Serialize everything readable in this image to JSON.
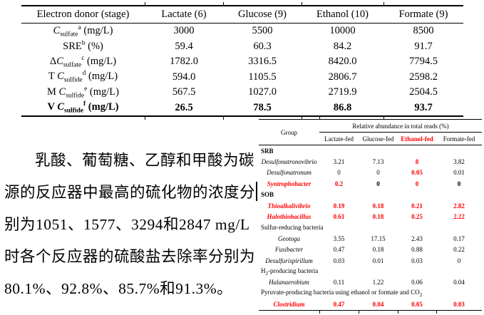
{
  "colors": {
    "accent_red": "#FF0000",
    "text": "#000000",
    "background": "#FFFFFF"
  },
  "top_table": {
    "columns": [
      "Electron donor (stage)",
      "Lactate (6)",
      "Glucose (9)",
      "Ethanol (10)",
      "Formate (9)"
    ],
    "rows": [
      {
        "label": [
          {
            "t": "C",
            "i": true
          },
          {
            "t": "sulfate",
            "sub": true
          },
          {
            "t": "a",
            "sup": true
          },
          {
            "t": " (mg/L)"
          }
        ],
        "values": [
          "3000",
          "5500",
          "10000",
          "8500"
        ],
        "bold": false
      },
      {
        "label": [
          {
            "t": "SRE"
          },
          {
            "t": "b",
            "sup": true
          },
          {
            "t": " (%)"
          }
        ],
        "values": [
          "59.4",
          "60.3",
          "84.2",
          "91.7"
        ],
        "bold": false
      },
      {
        "label": [
          {
            "t": "Δ"
          },
          {
            "t": "C",
            "i": true
          },
          {
            "t": "sulfate",
            "sub": true
          },
          {
            "t": "c",
            "sup": true
          },
          {
            "t": " (mg/L)"
          }
        ],
        "values": [
          "1782.0",
          "3316.5",
          "8420.0",
          "7794.5"
        ],
        "bold": false
      },
      {
        "label": [
          {
            "t": "T "
          },
          {
            "t": "C",
            "i": true
          },
          {
            "t": "sulfide",
            "sub": true
          },
          {
            "t": "d",
            "sup": true
          },
          {
            "t": " (mg/L)"
          }
        ],
        "values": [
          "594.0",
          "1105.5",
          "2806.7",
          "2598.2"
        ],
        "bold": false
      },
      {
        "label": [
          {
            "t": "M "
          },
          {
            "t": "C",
            "i": true
          },
          {
            "t": "sulfide",
            "sub": true
          },
          {
            "t": "e",
            "sup": true
          },
          {
            "t": " (mg/L)"
          }
        ],
        "values": [
          "567.5",
          "1027.0",
          "2719.9",
          "2504.5"
        ],
        "bold": false
      },
      {
        "label": [
          {
            "t": "V "
          },
          {
            "t": "C",
            "i": true
          },
          {
            "t": "sulfide",
            "sub": true
          },
          {
            "t": "f",
            "sup": true
          },
          {
            "t": " (mg/L)"
          }
        ],
        "values": [
          "26.5",
          "78.5",
          "86.8",
          "93.7"
        ],
        "bold": true
      }
    ]
  },
  "paragraph": {
    "lines": [
      "乳酸、葡萄糖、乙醇和甲酸为碳",
      "源的反应器中最高的硫化物的浓度分",
      "别为1051、1577、3294和2847 mg/L",
      "时各个反应器的硫酸盐去除率分别为",
      "80.1%、92.8%、85.7%和91.3%。"
    ],
    "cursor_after_line_index": 1
  },
  "right_table": {
    "group_header": "Group",
    "span_header": "Relative abundance in total reads (%)",
    "columns": [
      {
        "label": "Lactate-fed",
        "red": false
      },
      {
        "label": "Glucose-fed",
        "red": false
      },
      {
        "label": "Ethanol-fed",
        "red": true
      },
      {
        "label": "Formate-fed",
        "red": false
      }
    ],
    "rows": [
      {
        "type": "group",
        "bold": true,
        "red": false,
        "label": [
          {
            "t": "SRB"
          }
        ]
      },
      {
        "type": "genus",
        "red": false,
        "label": [
          {
            "t": "Desulfonatronovibrio"
          }
        ],
        "values": [
          {
            "t": "3.21"
          },
          {
            "t": "7.13"
          },
          {
            "t": "8",
            "red": true,
            "bold": true
          },
          {
            "t": "3.82"
          }
        ]
      },
      {
        "type": "genus",
        "red": false,
        "label": [
          {
            "t": "Desulfonatronum"
          }
        ],
        "values": [
          {
            "t": "0"
          },
          {
            "t": "0"
          },
          {
            "t": "0.05",
            "red": true,
            "bold": true
          },
          {
            "t": "0.01"
          }
        ]
      },
      {
        "type": "genus",
        "red": true,
        "label": [
          {
            "t": "Syntrophobacter"
          }
        ],
        "values": [
          {
            "t": "0.2",
            "red": true,
            "bold": true
          },
          {
            "t": "0",
            "bold": true
          },
          {
            "t": "0",
            "red": true,
            "bold": true
          },
          {
            "t": "0",
            "bold": true
          }
        ]
      },
      {
        "type": "group",
        "bold": true,
        "red": false,
        "label": [
          {
            "t": "SOB"
          }
        ]
      },
      {
        "type": "genus",
        "red": true,
        "label": [
          {
            "t": "Thioalkalivibrio"
          }
        ],
        "values": [
          {
            "t": "0.19",
            "red": true,
            "bold": true
          },
          {
            "t": "0.18",
            "red": true,
            "bold": true
          },
          {
            "t": "0.21",
            "red": true,
            "bold": true
          },
          {
            "t": "2.82",
            "red": true,
            "bold": true
          }
        ]
      },
      {
        "type": "genus",
        "red": true,
        "label": [
          {
            "t": "Halothiobacillus"
          }
        ],
        "values": [
          {
            "t": "0.61",
            "red": true,
            "bold": true
          },
          {
            "t": "0.18",
            "red": true,
            "bold": true
          },
          {
            "t": "0.25",
            "red": true,
            "bold": true
          },
          {
            "t": "2.22",
            "red": true,
            "bold": true
          }
        ]
      },
      {
        "type": "group",
        "bold": false,
        "red": false,
        "label": [
          {
            "t": "Sulfur-reducing bacteria"
          }
        ]
      },
      {
        "type": "genus",
        "red": false,
        "label": [
          {
            "t": "Geotoga"
          }
        ],
        "values": [
          {
            "t": "3.55"
          },
          {
            "t": "17.15"
          },
          {
            "t": "2.43"
          },
          {
            "t": "0.17"
          }
        ]
      },
      {
        "type": "genus",
        "red": false,
        "label": [
          {
            "t": "Fusibacter"
          }
        ],
        "values": [
          {
            "t": "0.47"
          },
          {
            "t": "0.18"
          },
          {
            "t": "0.88"
          },
          {
            "t": "0.22"
          }
        ]
      },
      {
        "type": "genus",
        "red": false,
        "label": [
          {
            "t": "Desulfurispirillum"
          }
        ],
        "values": [
          {
            "t": "0.03"
          },
          {
            "t": "0.01"
          },
          {
            "t": "0.03"
          },
          {
            "t": "0"
          }
        ]
      },
      {
        "type": "group",
        "bold": false,
        "red": false,
        "label": [
          {
            "t": "H"
          },
          {
            "t": "2",
            "sub": true
          },
          {
            "t": "-producing bacteria"
          }
        ]
      },
      {
        "type": "genus",
        "red": false,
        "label": [
          {
            "t": "Halanaerobium"
          }
        ],
        "values": [
          {
            "t": "0.11"
          },
          {
            "t": "1.22"
          },
          {
            "t": "0.06"
          },
          {
            "t": "0.04"
          }
        ]
      },
      {
        "type": "group",
        "bold": false,
        "red": false,
        "label": [
          {
            "t": "Pyruvate-producing bacteria using ethanol or formate and CO"
          },
          {
            "t": "2",
            "sub": true
          }
        ]
      },
      {
        "type": "genus",
        "red": true,
        "label": [
          {
            "t": "Clostridium"
          }
        ],
        "values": [
          {
            "t": "0.47",
            "red": true,
            "bold": true
          },
          {
            "t": "0.04",
            "red": true,
            "bold": true
          },
          {
            "t": "0.05",
            "red": true,
            "bold": true
          },
          {
            "t": "0.03",
            "red": true,
            "bold": true
          }
        ]
      }
    ]
  }
}
